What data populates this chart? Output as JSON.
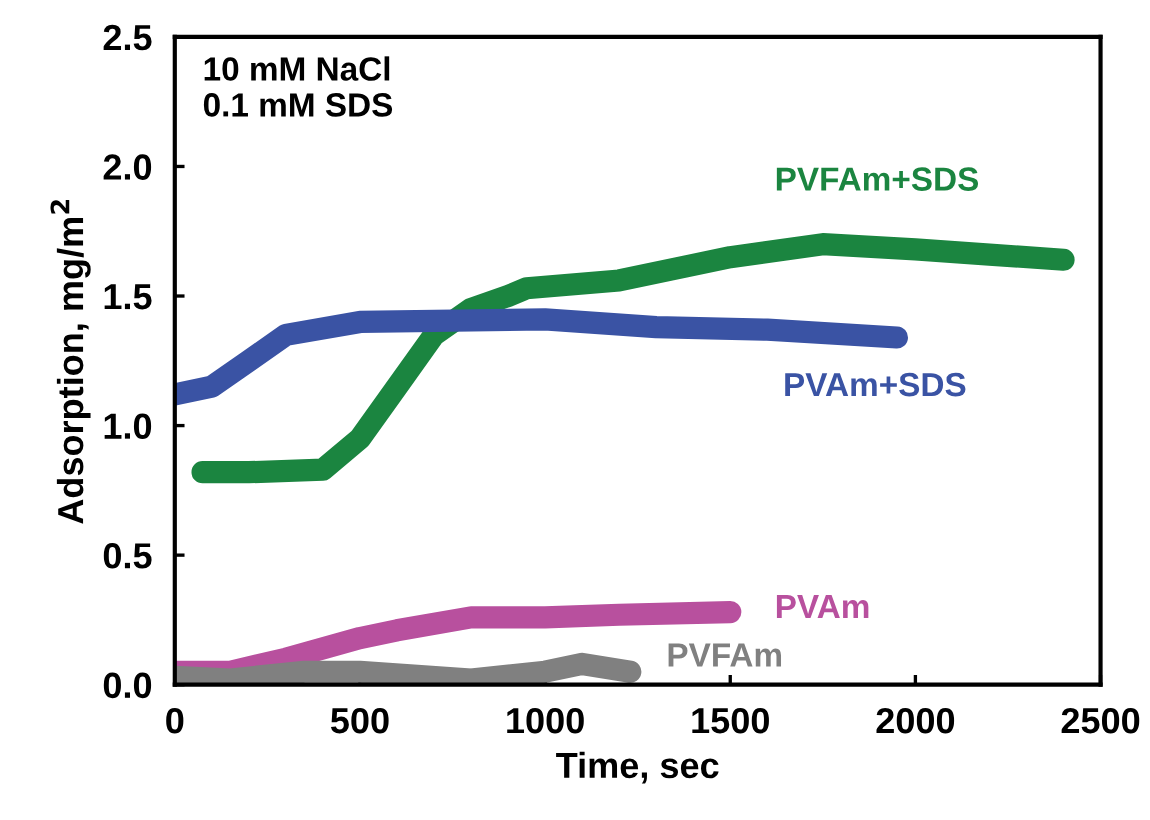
{
  "chart_data": {
    "type": "line",
    "xlabel": "Time, sec",
    "ylabel": "Adsorption, mg/m$^{2}$",
    "annotations": [
      "10 mM NaCl\n0.1 mM SDS"
    ],
    "xlim": [
      0,
      2500
    ],
    "ylim": [
      0,
      2.5
    ],
    "xticks": [
      0,
      500,
      1000,
      1500,
      2000,
      2500
    ],
    "yticks": [
      {
        "value": 0,
        "label": "0.0"
      },
      0.5,
      {
        "value": 1,
        "label": "1.0"
      },
      1.5,
      {
        "value": 2,
        "label": "2.0"
      },
      2.5
    ],
    "grid": false,
    "line_style": "solid",
    "series": [
      {
        "name": "PVFAm+SDS",
        "color": "#1b8540",
        "x": [
          75,
          200,
          400,
          500,
          600,
          700,
          800,
          900,
          950,
          1200,
          1500,
          1750,
          2000,
          2200,
          2400
        ],
        "values": [
          0.82,
          0.82,
          0.83,
          0.95,
          1.15,
          1.35,
          1.45,
          1.5,
          1.53,
          1.56,
          1.65,
          1.7,
          1.68,
          1.66,
          1.64
        ]
      },
      {
        "name": "PVAm+SDS",
        "color": "#3a53a4",
        "x": [
          0,
          100,
          200,
          300,
          500,
          1000,
          1300,
          1600,
          1950
        ],
        "values": [
          1.12,
          1.15,
          1.25,
          1.35,
          1.4,
          1.41,
          1.38,
          1.37,
          1.34
        ]
      },
      {
        "name": "PVAm",
        "color": "#b8509e",
        "x": [
          0,
          150,
          300,
          500,
          600,
          800,
          1000,
          1200,
          1500
        ],
        "values": [
          0.05,
          0.05,
          0.1,
          0.18,
          0.21,
          0.26,
          0.26,
          0.27,
          0.28
        ]
      },
      {
        "name": "PVFAm",
        "color": "#808080",
        "x": [
          0,
          150,
          350,
          500,
          800,
          1000,
          1100,
          1230
        ],
        "values": [
          0.03,
          0.02,
          0.05,
          0.05,
          0.02,
          0.05,
          0.08,
          0.05
        ]
      }
    ]
  }
}
